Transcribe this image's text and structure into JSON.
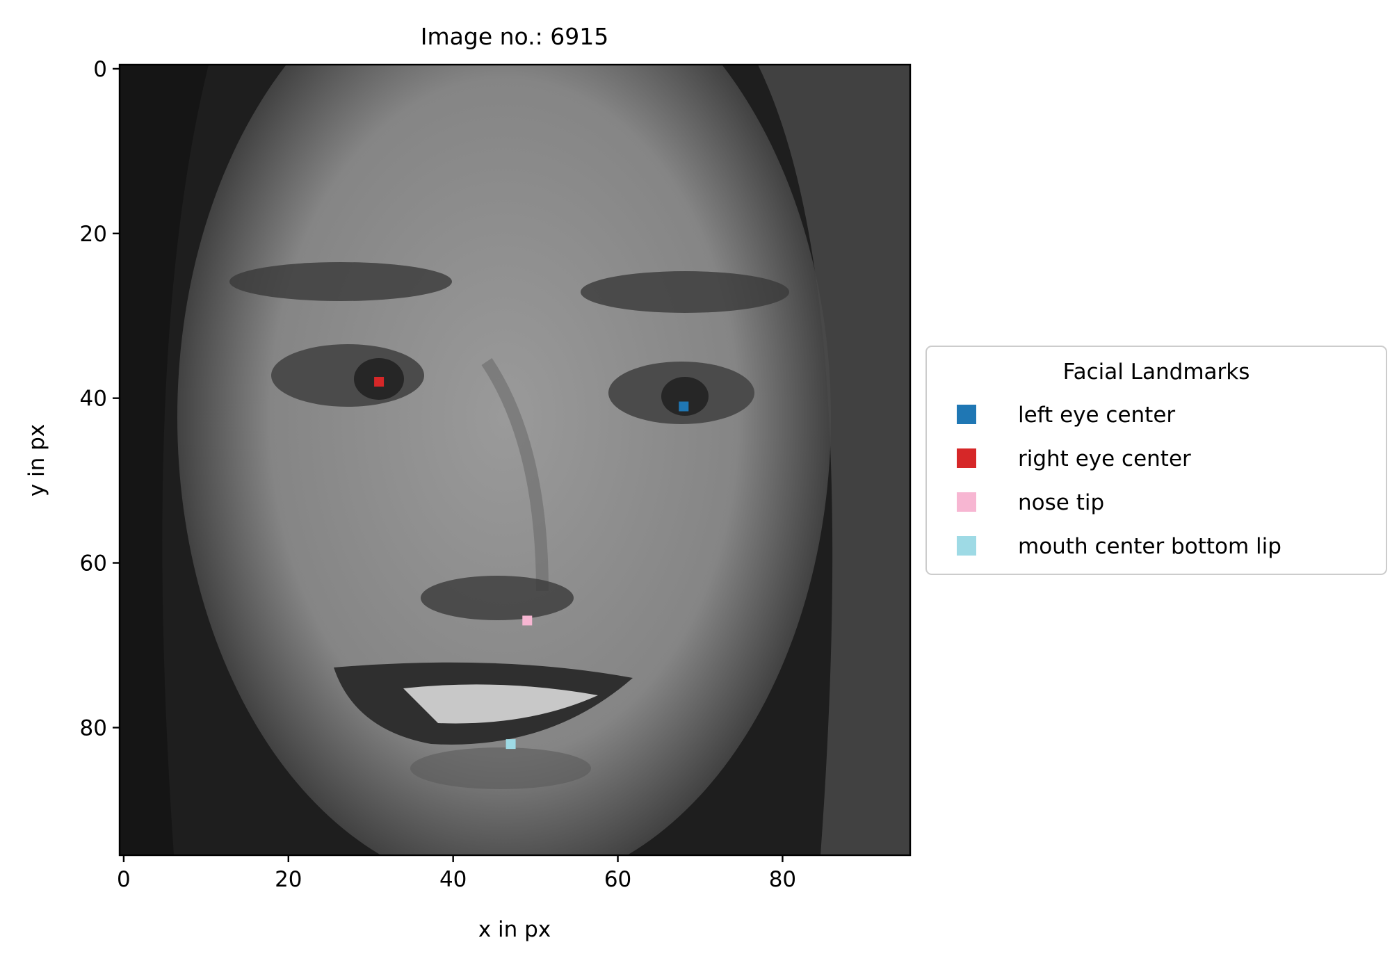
{
  "chart_data": {
    "type": "scatter",
    "title": "Image no.: 6915",
    "xlabel": "x in px",
    "ylabel": "y in px",
    "xlim": [
      -0.5,
      95.5
    ],
    "ylim": [
      95.5,
      -0.5
    ],
    "y_inverted": true,
    "xticks": [
      0,
      20,
      40,
      60,
      80
    ],
    "yticks": [
      0,
      20,
      40,
      60,
      80
    ],
    "background": "grayscale 96x96 face photograph",
    "grid": false,
    "legend": {
      "title": "Facial Landmarks",
      "placement": "center-left outside plot (right side)"
    },
    "series": [
      {
        "name": "left eye center",
        "color": "#1f77b4",
        "points": [
          [
            68,
            41
          ]
        ]
      },
      {
        "name": "right eye center",
        "color": "#d62728",
        "points": [
          [
            31,
            38
          ]
        ]
      },
      {
        "name": "nose tip",
        "color": "#f7b6d2",
        "points": [
          [
            49,
            67
          ]
        ]
      },
      {
        "name": "mouth center bottom lip",
        "color": "#9edae5",
        "points": [
          [
            47,
            82
          ]
        ]
      }
    ]
  }
}
